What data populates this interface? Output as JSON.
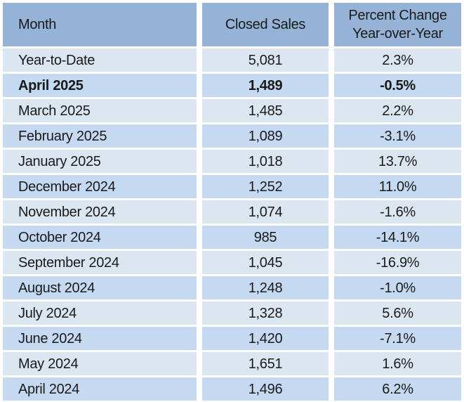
{
  "table": {
    "header": [
      "Month",
      "Closed Sales",
      "Percent Change\nYear-over-Year"
    ],
    "bold_row": 1,
    "rows": [
      [
        "Year-to-Date",
        "5,081",
        "2.3%"
      ],
      [
        "April 2025",
        "1,489",
        "-0.5%"
      ],
      [
        "March 2025",
        "1,485",
        "2.2%"
      ],
      [
        "February 2025",
        "1,089",
        "-3.1%"
      ],
      [
        "January 2025",
        "1,018",
        "13.7%"
      ],
      [
        "December 2024",
        "1,252",
        "11.0%"
      ],
      [
        "November 2024",
        "1,074",
        "-1.6%"
      ],
      [
        "October 2024",
        "985",
        "-14.1%"
      ],
      [
        "September 2024",
        "1,045",
        "-16.9%"
      ],
      [
        "August 2024",
        "1,248",
        "-1.0%"
      ],
      [
        "July 2024",
        "1,328",
        "5.6%"
      ],
      [
        "June 2024",
        "1,420",
        "-7.1%"
      ],
      [
        "May 2024",
        "1,651",
        "1.6%"
      ],
      [
        "April 2024",
        "1,496",
        "6.2%"
      ]
    ]
  }
}
